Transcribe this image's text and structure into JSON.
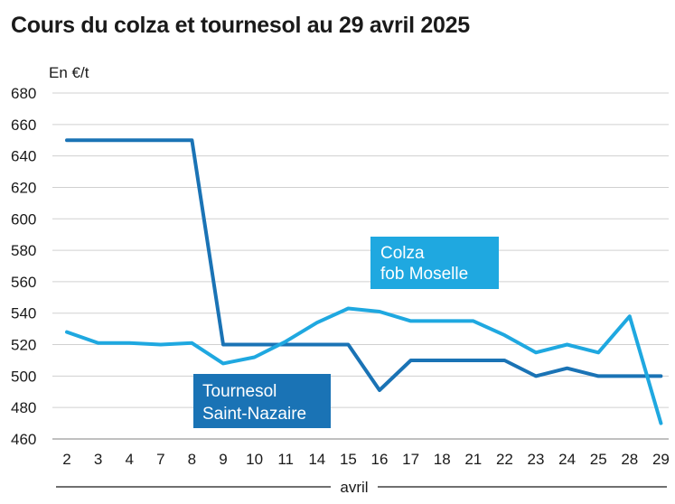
{
  "chart_data": {
    "type": "line",
    "title": "Cours du colza et tournesol au 29 avril 2025",
    "ylabel": "En €/t",
    "xlabel": "avril",
    "ylim": [
      460,
      680
    ],
    "yticks": [
      460,
      480,
      500,
      520,
      540,
      560,
      580,
      600,
      620,
      640,
      660,
      680
    ],
    "grid": "horizontal",
    "categories": [
      "2",
      "3",
      "4",
      "7",
      "8",
      "9",
      "10",
      "11",
      "14",
      "15",
      "16",
      "17",
      "18",
      "21",
      "22",
      "23",
      "24",
      "25",
      "28",
      "29"
    ],
    "series": [
      {
        "name": "Tournesol Saint-Nazaire",
        "label_lines": [
          "Tournesol",
          "Saint-Nazaire"
        ],
        "color": "#1a73b5",
        "values": [
          650,
          650,
          650,
          650,
          650,
          520,
          520,
          520,
          520,
          520,
          491,
          510,
          510,
          510,
          510,
          500,
          505,
          500,
          500,
          500
        ]
      },
      {
        "name": "Colza fob Moselle",
        "label_lines": [
          "Colza",
          "fob Moselle"
        ],
        "color": "#1fa8e0",
        "values": [
          528,
          521,
          521,
          520,
          521,
          508,
          512,
          522,
          534,
          543,
          541,
          535,
          535,
          535,
          526,
          515,
          520,
          515,
          538,
          470
        ]
      }
    ]
  }
}
